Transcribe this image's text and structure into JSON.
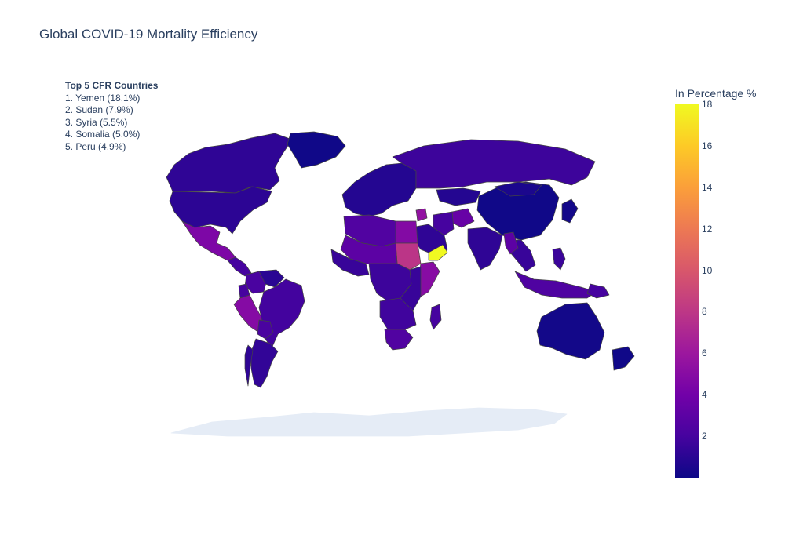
{
  "title": "Global COVID-19 Mortality Efficiency",
  "annotation": {
    "heading": "Top 5 CFR Countries",
    "items": [
      "1. Yemen (18.1%)",
      "2. Sudan (7.9%)",
      "3. Syria (5.5%)",
      "4. Somalia (5.0%)",
      "5. Peru (4.9%)"
    ]
  },
  "colorbar": {
    "title": "In Percentage %",
    "min": 0,
    "max": 18,
    "ticks": [
      "2",
      "4",
      "6",
      "8",
      "10",
      "12",
      "14",
      "16",
      "18"
    ],
    "colorscale": [
      "#0d0887",
      "#46039f",
      "#7201a8",
      "#9c179e",
      "#bd3786",
      "#d8576b",
      "#ed7953",
      "#fb9f3a",
      "#fdca26",
      "#f0f921"
    ]
  },
  "land_no_data_color": "#e5ecf6",
  "border_color": "#444444",
  "map_data": {
    "type": "choropleth",
    "metric": "CFR %",
    "regions": [
      {
        "name": "Canada",
        "value": 1.2
      },
      {
        "name": "United States",
        "value": 1.1
      },
      {
        "name": "Mexico",
        "value": 4.5
      },
      {
        "name": "Central America",
        "value": 2.0
      },
      {
        "name": "Greenland",
        "value": 0.1
      },
      {
        "name": "Colombia",
        "value": 2.2
      },
      {
        "name": "Venezuela",
        "value": 1.0
      },
      {
        "name": "Ecuador",
        "value": 2.0
      },
      {
        "name": "Peru",
        "value": 4.9
      },
      {
        "name": "Brazil",
        "value": 1.9
      },
      {
        "name": "Bolivia",
        "value": 2.2
      },
      {
        "name": "Argentina",
        "value": 1.3
      },
      {
        "name": "Chile",
        "value": 1.2
      },
      {
        "name": "Europe",
        "value": 0.8
      },
      {
        "name": "Russia",
        "value": 1.7
      },
      {
        "name": "Kazakhstan",
        "value": 0.8
      },
      {
        "name": "China",
        "value": 0.1
      },
      {
        "name": "Mongolia",
        "value": 0.5
      },
      {
        "name": "Japan",
        "value": 0.2
      },
      {
        "name": "India",
        "value": 1.2
      },
      {
        "name": "Afghanistan",
        "value": 3.5
      },
      {
        "name": "Iran",
        "value": 2.0
      },
      {
        "name": "Saudi Arabia",
        "value": 1.2
      },
      {
        "name": "Syria",
        "value": 5.5
      },
      {
        "name": "Yemen",
        "value": 18.1
      },
      {
        "name": "Egypt",
        "value": 4.8
      },
      {
        "name": "Sudan",
        "value": 7.9
      },
      {
        "name": "North Africa",
        "value": 2.5
      },
      {
        "name": "Sahel",
        "value": 3.0
      },
      {
        "name": "West Africa",
        "value": 1.5
      },
      {
        "name": "Central Africa",
        "value": 1.7
      },
      {
        "name": "Somalia",
        "value": 5.0
      },
      {
        "name": "East Africa",
        "value": 1.5
      },
      {
        "name": "Southern Africa",
        "value": 1.8
      },
      {
        "name": "South Africa",
        "value": 2.5
      },
      {
        "name": "Madagascar",
        "value": 2.0
      },
      {
        "name": "Southeast Asia",
        "value": 1.5
      },
      {
        "name": "Myanmar",
        "value": 3.0
      },
      {
        "name": "Indonesia",
        "value": 2.4
      },
      {
        "name": "Philippines",
        "value": 1.6
      },
      {
        "name": "Papua New Guinea",
        "value": 2.0
      },
      {
        "name": "Australia",
        "value": 0.2
      },
      {
        "name": "New Zealand",
        "value": 0.1
      },
      {
        "name": "Antarctica",
        "value": null
      }
    ]
  }
}
